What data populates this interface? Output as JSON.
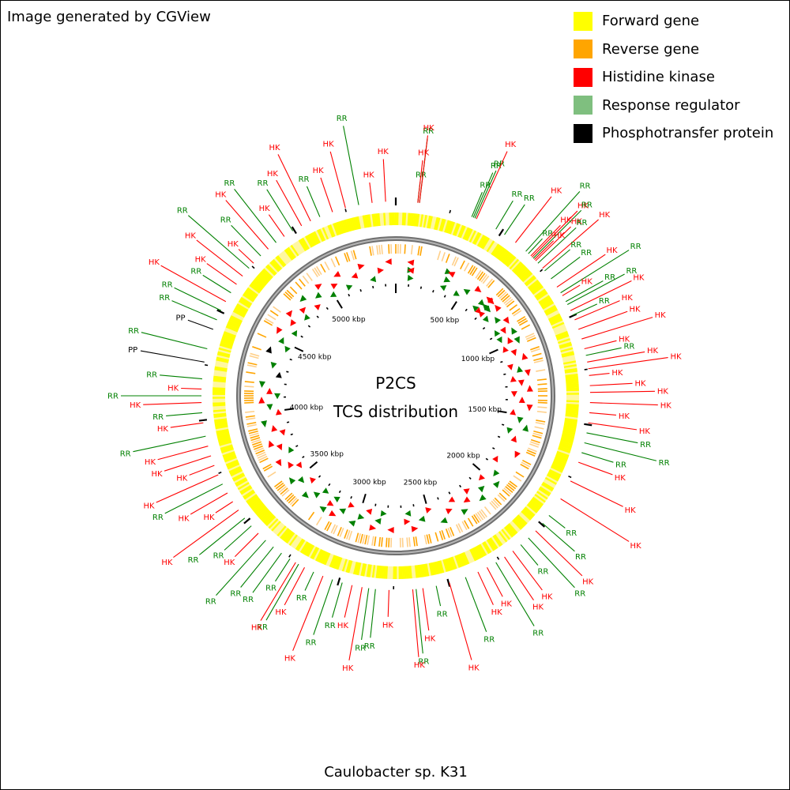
{
  "credit": "Image generated by CGView",
  "legend": [
    {
      "label": "Forward gene",
      "color": "#ffff00"
    },
    {
      "label": "Reverse gene",
      "color": "#ffa500"
    },
    {
      "label": "Histidine kinase",
      "color": "#ff0000"
    },
    {
      "label": "Response regulator",
      "color": "#7fbf7f"
    },
    {
      "label": "Phosphotransfer protein",
      "color": "#000000"
    }
  ],
  "center": {
    "line1": "P2CS",
    "line2": "TCS distribution"
  },
  "footer": "Caulobacter sp. K31",
  "ruler": {
    "total_kbp": 5480,
    "labels": [
      "500 kbp",
      "1000 kbp",
      "1500 kbp",
      "2000 kbp",
      "2500 kbp",
      "3000 kbp",
      "3500 kbp",
      "4000 kbp",
      "4500 kbp",
      "5000 kbp"
    ],
    "positions_kbp": [
      500,
      1000,
      1500,
      2000,
      2500,
      3000,
      3500,
      4000,
      4500,
      5000
    ]
  },
  "colors": {
    "hk": "#ff0000",
    "rr": "#008000",
    "pp": "#000000",
    "forward": "#ffff00",
    "reverse": "#ffa500",
    "backbone": "#777777"
  },
  "features": [
    {
      "type": "RR",
      "deg": 6.5
    },
    {
      "type": "HK",
      "deg": 6.5
    },
    {
      "type": "RR",
      "deg": 7
    },
    {
      "type": "HK",
      "deg": 7
    },
    {
      "type": "RR",
      "deg": 23
    },
    {
      "type": "RR",
      "deg": 23.5
    },
    {
      "type": "RR",
      "deg": 24
    },
    {
      "type": "HK",
      "deg": 24.5
    },
    {
      "type": "RR",
      "deg": 31
    },
    {
      "type": "RR",
      "deg": 34
    },
    {
      "type": "HK",
      "deg": 38
    },
    {
      "type": "RR",
      "deg": 42
    },
    {
      "type": "RR",
      "deg": 43
    },
    {
      "type": "HK",
      "deg": 44
    },
    {
      "type": "HK",
      "deg": 44.5
    },
    {
      "type": "RR",
      "deg": 45
    },
    {
      "type": "HK",
      "deg": 45.5
    },
    {
      "type": "HK",
      "deg": 46
    },
    {
      "type": "RR",
      "deg": 47
    },
    {
      "type": "HK",
      "deg": 49
    },
    {
      "type": "RR",
      "deg": 50
    },
    {
      "type": "RR",
      "deg": 53
    },
    {
      "type": "HK",
      "deg": 56
    },
    {
      "type": "RR",
      "deg": 58
    },
    {
      "type": "HK",
      "deg": 59
    },
    {
      "type": "RR",
      "deg": 61
    },
    {
      "type": "RR",
      "deg": 62
    },
    {
      "type": "HK",
      "deg": 64
    },
    {
      "type": "RR",
      "deg": 65.5
    },
    {
      "type": "HK",
      "deg": 67
    },
    {
      "type": "HK",
      "deg": 70
    },
    {
      "type": "HK",
      "deg": 73
    },
    {
      "type": "HK",
      "deg": 76
    },
    {
      "type": "RR",
      "deg": 78
    },
    {
      "type": "HK",
      "deg": 80
    },
    {
      "type": "HK",
      "deg": 82
    },
    {
      "type": "HK",
      "deg": 84
    },
    {
      "type": "HK",
      "deg": 87
    },
    {
      "type": "HK",
      "deg": 89
    },
    {
      "type": "HK",
      "deg": 92
    },
    {
      "type": "HK",
      "deg": 95
    },
    {
      "type": "HK",
      "deg": 98
    },
    {
      "type": "RR",
      "deg": 101
    },
    {
      "type": "RR",
      "deg": 104
    },
    {
      "type": "RR",
      "deg": 107
    },
    {
      "type": "HK",
      "deg": 110
    },
    {
      "type": "HK",
      "deg": 116
    },
    {
      "type": "HK",
      "deg": 122
    },
    {
      "type": "RR",
      "deg": 128
    },
    {
      "type": "RR",
      "deg": 131
    },
    {
      "type": "HK",
      "deg": 134
    },
    {
      "type": "RR",
      "deg": 137
    },
    {
      "type": "RR",
      "deg": 140
    },
    {
      "type": "HK",
      "deg": 143
    },
    {
      "type": "HK",
      "deg": 146
    },
    {
      "type": "RR",
      "deg": 149
    },
    {
      "type": "HK",
      "deg": 152
    },
    {
      "type": "HK",
      "deg": 155
    },
    {
      "type": "RR",
      "deg": 159
    },
    {
      "type": "HK",
      "deg": 164
    },
    {
      "type": "RR",
      "deg": 168
    },
    {
      "type": "HK",
      "deg": 172
    },
    {
      "type": "RR",
      "deg": 174
    },
    {
      "type": "HK",
      "deg": 175
    },
    {
      "type": "HK",
      "deg": 182
    },
    {
      "type": "RR",
      "deg": 186
    },
    {
      "type": "RR",
      "deg": 188
    },
    {
      "type": "HK",
      "deg": 190
    },
    {
      "type": "HK",
      "deg": 193
    },
    {
      "type": "RR",
      "deg": 196
    },
    {
      "type": "RR",
      "deg": 199
    },
    {
      "type": "HK",
      "deg": 202
    },
    {
      "type": "RR",
      "deg": 205
    },
    {
      "type": "HK",
      "deg": 208
    },
    {
      "type": "RR",
      "deg": 210
    },
    {
      "type": "HK",
      "deg": 211
    },
    {
      "type": "RR",
      "deg": 213
    },
    {
      "type": "RR",
      "deg": 216
    },
    {
      "type": "RR",
      "deg": 219
    },
    {
      "type": "RR",
      "deg": 222
    },
    {
      "type": "HK",
      "deg": 225
    },
    {
      "type": "RR",
      "deg": 228
    },
    {
      "type": "RR",
      "deg": 231
    },
    {
      "type": "HK",
      "deg": 234
    },
    {
      "type": "HK",
      "deg": 237
    },
    {
      "type": "HK",
      "deg": 240
    },
    {
      "type": "RR",
      "deg": 243
    },
    {
      "type": "HK",
      "deg": 246
    },
    {
      "type": "HK",
      "deg": 249
    },
    {
      "type": "HK",
      "deg": 252
    },
    {
      "type": "HK",
      "deg": 255
    },
    {
      "type": "RR",
      "deg": 258
    },
    {
      "type": "HK",
      "deg": 262
    },
    {
      "type": "RR",
      "deg": 265
    },
    {
      "type": "HK",
      "deg": 268
    },
    {
      "type": "RR",
      "deg": 270
    },
    {
      "type": "HK",
      "deg": 272
    },
    {
      "type": "RR",
      "deg": 275
    },
    {
      "type": "PP",
      "deg": 280
    },
    {
      "type": "RR",
      "deg": 284
    },
    {
      "type": "PP",
      "deg": 290
    },
    {
      "type": "RR",
      "deg": 293
    },
    {
      "type": "RR",
      "deg": 296
    },
    {
      "type": "HK",
      "deg": 299
    },
    {
      "type": "RR",
      "deg": 302
    },
    {
      "type": "HK",
      "deg": 305
    },
    {
      "type": "HK",
      "deg": 308
    },
    {
      "type": "RR",
      "deg": 311
    },
    {
      "type": "HK",
      "deg": 313
    },
    {
      "type": "RR",
      "deg": 316
    },
    {
      "type": "HK",
      "deg": 319
    },
    {
      "type": "RR",
      "deg": 322
    },
    {
      "type": "HK",
      "deg": 325
    },
    {
      "type": "RR",
      "deg": 328
    },
    {
      "type": "HK",
      "deg": 331
    },
    {
      "type": "HK",
      "deg": 334
    },
    {
      "type": "RR",
      "deg": 337
    },
    {
      "type": "HK",
      "deg": 341
    },
    {
      "type": "HK",
      "deg": 345
    },
    {
      "type": "RR",
      "deg": 349
    },
    {
      "type": "HK",
      "deg": 353
    },
    {
      "type": "HK",
      "deg": 357
    }
  ]
}
